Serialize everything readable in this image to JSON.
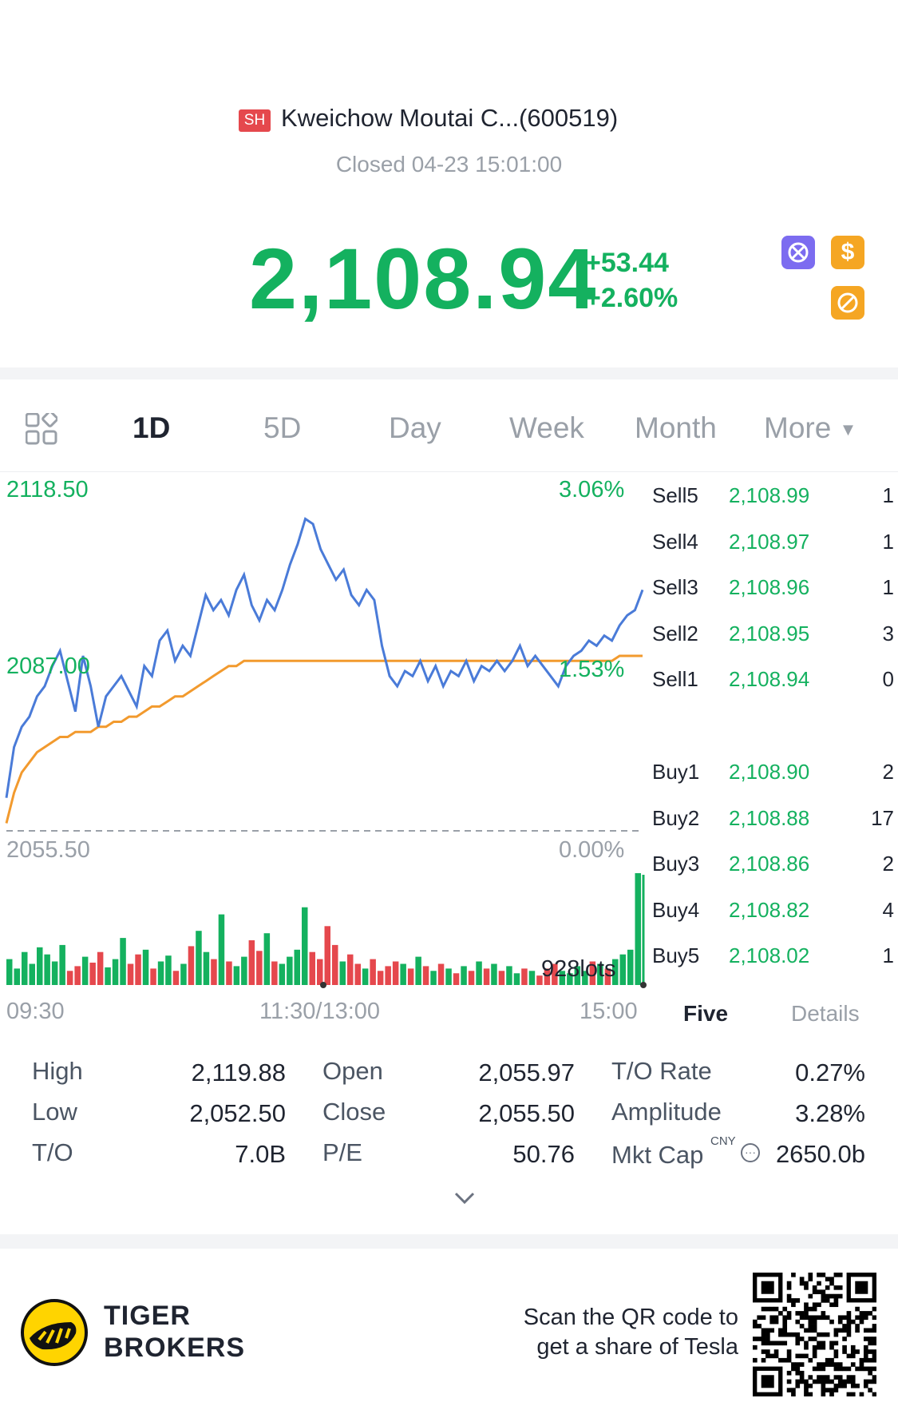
{
  "header": {
    "market": "SH",
    "name": "Kweichow Moutai C...(600519)",
    "status": "Closed 04-23 15:01:00",
    "price": "2,108.94",
    "change": "+53.44",
    "change_pct": "+2.60%",
    "icons": [
      "no-trade-icon",
      "dollar-icon",
      "no-short-icon"
    ]
  },
  "tabs": [
    "1D",
    "5D",
    "Day",
    "Week",
    "Month",
    "More"
  ],
  "active_tab": "1D",
  "chart_labels": {
    "high_price": "2118.50",
    "high_pct": "3.06%",
    "mid_price": "2087.00",
    "mid_pct": "1.53%",
    "low_price": "2055.50",
    "low_pct": "0.00%",
    "volume_label": "928lots",
    "time_start": "09:30",
    "time_mid": "11:30/13:00",
    "time_end": "15:00"
  },
  "chart_data": {
    "type": "line",
    "series": [
      {
        "name": "price",
        "color": "#4a7bd8",
        "values": [
          2062,
          2072,
          2076,
          2078,
          2082,
          2084,
          2088,
          2091,
          2085,
          2079,
          2090,
          2084,
          2076,
          2082,
          2084,
          2086,
          2083,
          2080,
          2088,
          2086,
          2093,
          2095,
          2089,
          2092,
          2090,
          2096,
          2102,
          2099,
          2101,
          2098,
          2103,
          2106,
          2100,
          2097,
          2101,
          2099,
          2103,
          2108,
          2112,
          2117,
          2116,
          2111,
          2108,
          2105,
          2107,
          2102,
          2100,
          2103,
          2101,
          2092,
          2086,
          2084,
          2087,
          2086,
          2089,
          2085,
          2088,
          2084,
          2087,
          2086,
          2089,
          2085,
          2088,
          2087,
          2089,
          2087,
          2089,
          2092,
          2088,
          2090,
          2088,
          2086,
          2084,
          2088,
          2090,
          2091,
          2093,
          2092,
          2094,
          2093,
          2096,
          2098,
          2099,
          2103
        ]
      },
      {
        "name": "avg",
        "color": "#f29a2e",
        "values": [
          2057,
          2063,
          2067,
          2069,
          2071,
          2072,
          2073,
          2074,
          2074,
          2075,
          2075,
          2075,
          2076,
          2076,
          2077,
          2077,
          2078,
          2078,
          2079,
          2080,
          2080,
          2081,
          2082,
          2082,
          2083,
          2084,
          2085,
          2086,
          2087,
          2088,
          2088,
          2089,
          2089,
          2089,
          2089,
          2089,
          2089,
          2089,
          2089,
          2089,
          2089,
          2089,
          2089,
          2089,
          2089,
          2089,
          2089,
          2089,
          2089,
          2089,
          2089,
          2089,
          2089,
          2089,
          2089,
          2089,
          2089,
          2089,
          2089,
          2089,
          2089,
          2089,
          2089,
          2089,
          2089,
          2089,
          2089,
          2089,
          2089,
          2089,
          2089,
          2089,
          2089,
          2089,
          2089,
          2089,
          2089,
          2089,
          2089,
          2089,
          2090,
          2090,
          2090,
          2090
        ]
      }
    ],
    "ylim": [
      2055.5,
      2118.5
    ],
    "grid": false,
    "volume": [
      22,
      14,
      28,
      18,
      32,
      26,
      20,
      34,
      12,
      16,
      24,
      19,
      28,
      15,
      22,
      40,
      18,
      26,
      30,
      14,
      20,
      25,
      12,
      18,
      33,
      46,
      28,
      22,
      60,
      20,
      16,
      24,
      38,
      29,
      44,
      20,
      18,
      24,
      30,
      66,
      28,
      22,
      50,
      34,
      20,
      26,
      18,
      14,
      22,
      12,
      16,
      20,
      18,
      14,
      24,
      16,
      12,
      18,
      14,
      10,
      16,
      12,
      20,
      14,
      18,
      12,
      16,
      10,
      14,
      12,
      8,
      14,
      18,
      12,
      10,
      16,
      12,
      20,
      18,
      14,
      22,
      26,
      30,
      95
    ]
  },
  "order_book": {
    "sell": [
      {
        "label": "Sell5",
        "price": "2,108.99",
        "qty": "1"
      },
      {
        "label": "Sell4",
        "price": "2,108.97",
        "qty": "1"
      },
      {
        "label": "Sell3",
        "price": "2,108.96",
        "qty": "1"
      },
      {
        "label": "Sell2",
        "price": "2,108.95",
        "qty": "3"
      },
      {
        "label": "Sell1",
        "price": "2,108.94",
        "qty": "0"
      }
    ],
    "buy": [
      {
        "label": "Buy1",
        "price": "2,108.90",
        "qty": "2"
      },
      {
        "label": "Buy2",
        "price": "2,108.88",
        "qty": "17"
      },
      {
        "label": "Buy3",
        "price": "2,108.86",
        "qty": "2"
      },
      {
        "label": "Buy4",
        "price": "2,108.82",
        "qty": "4"
      },
      {
        "label": "Buy5",
        "price": "2,108.02",
        "qty": "1"
      }
    ],
    "tab_five": "Five",
    "tab_details": "Details"
  },
  "stats": {
    "high_label": "High",
    "high": "2,119.88",
    "low_label": "Low",
    "low": "2,052.50",
    "to_label": "T/O",
    "to": "7.0B",
    "open_label": "Open",
    "open": "2,055.97",
    "close_label": "Close",
    "close": "2,055.50",
    "pe_label": "P/E",
    "pe": "50.76",
    "torate_label": "T/O Rate",
    "torate": "0.27%",
    "amp_label": "Amplitude",
    "amp": "3.28%",
    "mktcap_label": "Mkt Cap",
    "mktcap_currency": "CNY",
    "mktcap": "2650.0b"
  },
  "footer": {
    "brand_line1": "TIGER",
    "brand_line2": "BROKERS",
    "promo_line1": "Scan the QR code to",
    "promo_line2": "get a share of Tesla"
  },
  "colors": {
    "green": "#14b15f",
    "red": "#e5484d",
    "price_line": "#4a7bd8",
    "avg_line": "#f29a2e",
    "brand_yellow": "#ffd400"
  }
}
